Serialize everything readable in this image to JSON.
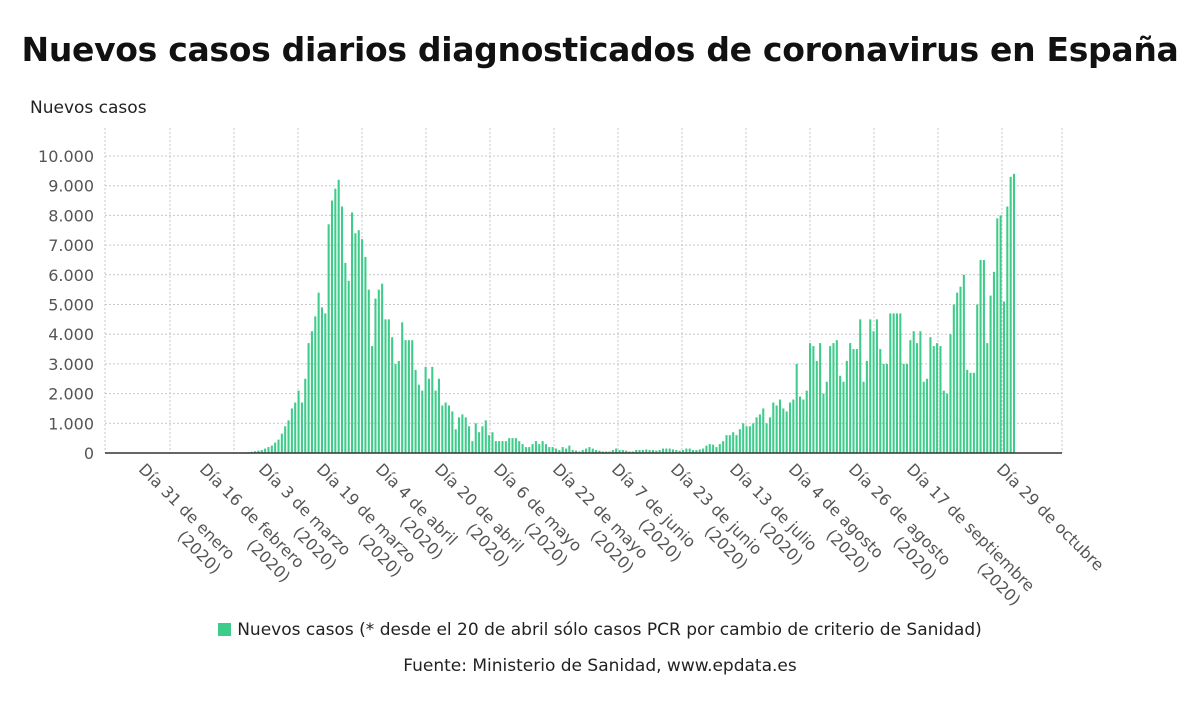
{
  "header": {
    "title": "Nuevos casos diarios diagnosticados de coronavirus en España"
  },
  "legend": {
    "label": "Nuevos casos (* desde el 20 de abril sólo casos PCR por cambio de criterio de Sanidad)"
  },
  "footer": {
    "source": "Fuente: Ministerio de Sanidad, www.epdata.es"
  },
  "colors": {
    "bar": "#3ecc8a",
    "grid": "#c8c8c8",
    "axis": "#333333"
  },
  "chart_data": {
    "type": "bar",
    "title": "Nuevos casos diarios diagnosticados de coronavirus en España",
    "ylabel": "Nuevos casos",
    "xlabel": "",
    "ylim": [
      0,
      10000
    ],
    "grid": true,
    "yticks": [
      0,
      1000,
      2000,
      3000,
      4000,
      5000,
      6000,
      7000,
      8000,
      9000,
      10000
    ],
    "ytick_labels": [
      "0",
      "1.000",
      "2.000",
      "3.000",
      "4.000",
      "5.000",
      "6.000",
      "7.000",
      "8.000",
      "9.000",
      "10.000"
    ],
    "xtick_labels": [
      [
        "Día 31 de enero",
        "(2020)"
      ],
      [
        "Día 16 de febrero",
        "(2020)"
      ],
      [
        "Día 3 de marzo",
        "(2020)"
      ],
      [
        "Día 19 de marzo",
        "(2020)"
      ],
      [
        "Día 4 de abril",
        "(2020)"
      ],
      [
        "Día 20 de abril",
        "(2020)"
      ],
      [
        "Día 6 de mayo",
        "(2020)"
      ],
      [
        "Día 22 de mayo",
        "(2020)"
      ],
      [
        "Día 7 de junio",
        "(2020)"
      ],
      [
        "Día 23 de junio",
        "(2020)"
      ],
      [
        "Día 13 de julio",
        "(2020)"
      ],
      [
        "Día 4 de agosto",
        "(2020)"
      ],
      [
        "Día 26 de agosto",
        "(2020)"
      ],
      [
        "Día 17 de septiembre",
        "(2020)"
      ],
      [
        "Día 29 de octubre",
        ""
      ]
    ],
    "series": [
      {
        "name": "Nuevos casos (* desde el 20 de abril sólo casos PCR por cambio de criterio de Sanidad)",
        "values": [
          0,
          0,
          0,
          0,
          0,
          0,
          0,
          0,
          0,
          0,
          0,
          0,
          0,
          0,
          0,
          0,
          0,
          0,
          0,
          0,
          0,
          0,
          0,
          0,
          0,
          0,
          0,
          0,
          0,
          0,
          0,
          0,
          0,
          0,
          0,
          0,
          0,
          0,
          5,
          10,
          15,
          20,
          30,
          40,
          60,
          80,
          100,
          150,
          200,
          250,
          350,
          450,
          650,
          900,
          1100,
          1500,
          1700,
          2100,
          1700,
          2500,
          3700,
          4100,
          4600,
          5400,
          4900,
          4700,
          7700,
          8500,
          8900,
          9200,
          8300,
          6400,
          5800,
          8100,
          7400,
          7500,
          7200,
          6600,
          5500,
          3600,
          5200,
          5500,
          5700,
          4500,
          4500,
          3900,
          3000,
          3100,
          4400,
          3800,
          3800,
          3800,
          2800,
          2300,
          2100,
          2900,
          2500,
          2900,
          2100,
          2500,
          1600,
          1700,
          1600,
          1400,
          800,
          1200,
          1300,
          1200,
          900,
          400,
          1000,
          700,
          900,
          1100,
          600,
          700,
          400,
          400,
          400,
          400,
          500,
          500,
          500,
          400,
          300,
          200,
          200,
          300,
          400,
          300,
          400,
          300,
          200,
          200,
          150,
          100,
          200,
          150,
          250,
          100,
          80,
          50,
          100,
          150,
          200,
          150,
          100,
          80,
          50,
          50,
          50,
          100,
          150,
          100,
          100,
          80,
          50,
          50,
          100,
          100,
          100,
          120,
          100,
          100,
          80,
          100,
          150,
          150,
          150,
          120,
          100,
          80,
          100,
          150,
          150,
          100,
          100,
          120,
          150,
          250,
          300,
          280,
          200,
          300,
          400,
          600,
          600,
          700,
          600,
          800,
          1000,
          900,
          900,
          1000,
          1200,
          1300,
          1500,
          1000,
          1200,
          1700,
          1600,
          1800,
          1500,
          1400,
          1700,
          1800,
          3000,
          1900,
          1800,
          2100,
          3700,
          3600,
          3100,
          3700,
          2000,
          2400,
          3600,
          3700,
          3800,
          2600,
          2400,
          3100,
          3700,
          3500,
          3500,
          4500,
          2400,
          3100,
          4500,
          4100,
          4500,
          3500,
          3000,
          3000,
          4700,
          4700,
          4700,
          4700,
          3000,
          3000,
          3800,
          4100,
          3700,
          4100,
          2400,
          2500,
          3900,
          3600,
          3700,
          3600,
          2100,
          2000,
          4000,
          5000,
          5400,
          5600,
          6000,
          2800,
          2700,
          2700,
          5000,
          6500,
          6500,
          3700,
          5300,
          6100,
          7900,
          8000,
          5100,
          8300,
          9300,
          9400
        ]
      }
    ]
  }
}
